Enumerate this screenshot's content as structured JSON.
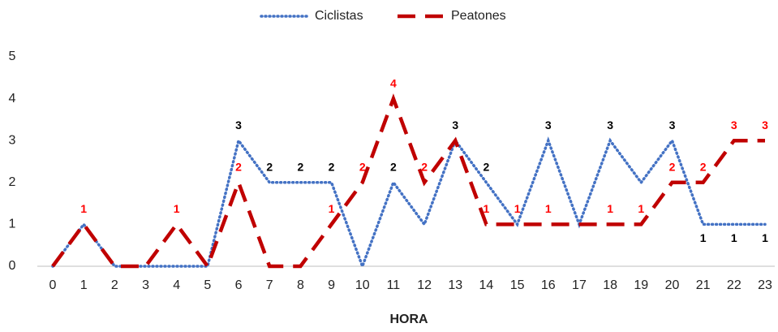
{
  "chart_data": {
    "type": "line",
    "x_label": "HORA",
    "categories": [
      "0",
      "1",
      "2",
      "3",
      "4",
      "5",
      "6",
      "7",
      "8",
      "9",
      "10",
      "11",
      "12",
      "13",
      "14",
      "15",
      "16",
      "17",
      "18",
      "19",
      "20",
      "21",
      "22",
      "23"
    ],
    "series": [
      {
        "name": "Ciclistas",
        "color": "#4472c4",
        "dash": "dotted",
        "values": [
          0,
          1,
          0,
          0,
          0,
          0,
          3,
          2,
          2,
          2,
          0,
          2,
          1,
          3,
          2,
          1,
          3,
          1,
          3,
          2,
          3,
          1,
          1,
          1
        ],
        "value_labels": [
          null,
          null,
          null,
          null,
          null,
          null,
          "3",
          "2",
          "2",
          "2",
          null,
          "2",
          null,
          "3",
          "2",
          null,
          "3",
          null,
          "3",
          null,
          "3",
          "1",
          "1",
          "1"
        ],
        "label_color": "#000000"
      },
      {
        "name": "Peatones",
        "color": "#c00000",
        "dash": "dashed",
        "values": [
          0,
          1,
          0,
          0,
          1,
          0,
          2,
          0,
          0,
          1,
          2,
          4,
          2,
          3,
          1,
          1,
          1,
          1,
          1,
          1,
          2,
          2,
          3,
          3
        ],
        "value_labels": [
          null,
          "1",
          null,
          null,
          "1",
          null,
          "2",
          null,
          null,
          "1",
          "2",
          "4",
          "2",
          null,
          "1",
          "1",
          "1",
          null,
          "1",
          "1",
          "2",
          "2",
          "3",
          "3"
        ],
        "label_color": "#ff0000"
      }
    ],
    "ylim": [
      0,
      5
    ],
    "yticks": [
      0,
      1,
      2,
      3,
      4,
      5
    ],
    "grid": false,
    "legend": "top"
  }
}
